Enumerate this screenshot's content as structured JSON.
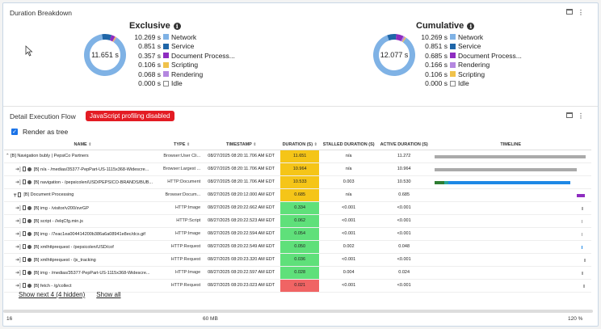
{
  "duration_panel": {
    "title": "Duration Breakdown",
    "exclusive": {
      "title": "Exclusive",
      "center_label": "11.651 s",
      "items": [
        {
          "value": "10.269 s",
          "label": "Network",
          "color": "#7fb2e5"
        },
        {
          "value": "0.851 s",
          "label": "Service",
          "color": "#1f66a8"
        },
        {
          "value": "0.357 s",
          "label": "Document Process...",
          "color": "#8e2cc0"
        },
        {
          "value": "0.106 s",
          "label": "Scripting",
          "color": "#f0c24b"
        },
        {
          "value": "0.068 s",
          "label": "Rendering",
          "color": "#b487e0"
        },
        {
          "value": "0.000 s",
          "label": "Idle",
          "color": "#ffffff"
        }
      ]
    },
    "cumulative": {
      "title": "Cumulative",
      "center_label": "12.077 s",
      "items": [
        {
          "value": "10.269 s",
          "label": "Network",
          "color": "#7fb2e5"
        },
        {
          "value": "0.851 s",
          "label": "Service",
          "color": "#1f66a8"
        },
        {
          "value": "0.685 s",
          "label": "Document Process...",
          "color": "#8e2cc0"
        },
        {
          "value": "0.166 s",
          "label": "Rendering",
          "color": "#b487e0"
        },
        {
          "value": "0.106 s",
          "label": "Scripting",
          "color": "#f0c24b"
        },
        {
          "value": "0.000 s",
          "label": "Idle",
          "color": "#ffffff"
        }
      ]
    }
  },
  "flow_panel": {
    "title": "Detail Execution Flow",
    "badge": "JavaScript profiling disabled",
    "render_as_tree": "Render as tree",
    "columns": [
      "NAME",
      "TYPE",
      "TIMESTAMP",
      "DURATION (S)",
      "STALLED DURATION (S)",
      "ACTIVE DURATION (S)",
      "TIMELINE"
    ],
    "rows": [
      {
        "name": "[B] Navigation bubly | PepsiCo Partners",
        "type": "Browser:User Cli...",
        "ts": "08/27/2025 08:20:11.706 AM EDT",
        "dur": "11.651",
        "stalled": "n/a",
        "active": "11.272",
        "dur_color": "#f5c518",
        "tl_color": "#aaaaaa",
        "tl_start": 0.0,
        "tl_end": 1.0
      },
      {
        "name": "[B] n/a - /medias/35377-PepPart-US-1115x368-Widescre...",
        "type": "Browser:Largest ...",
        "ts": "08/27/2025 08:20:11.706 AM EDT",
        "dur": "10.964",
        "stalled": "n/a",
        "active": "10.964",
        "dur_color": "#f5c518",
        "tl_color": "#aaaaaa",
        "tl_start": 0.0,
        "tl_end": 0.94
      },
      {
        "name": "[B] navigation - /pepsicolen/USD/PEPSICO-BRANDS/BUB...",
        "type": "HTTP:Document",
        "ts": "08/27/2025 08:20:11.706 AM EDT",
        "dur": "10.533",
        "stalled": "0.003",
        "active": "10.530",
        "dur_color": "#f5c518",
        "tl_color": "#1e88e5",
        "tl_start": 0.0,
        "tl_end": 0.9
      },
      {
        "name": "[B] Document Processing",
        "type": "Browser:Docum...",
        "ts": "08/27/2025 08:20:12.000 AM EDT",
        "dur": "0.685",
        "stalled": "n/a",
        "active": "0.685",
        "dur_color": "#f5c518",
        "tl_color": "#8e2cc0",
        "tl_start": 0.94,
        "tl_end": 0.995
      },
      {
        "name": "[B] img - /visitor/v200/svrGP",
        "type": "HTTP:Image",
        "ts": "08/27/2025 08:20:22.662 AM EDT",
        "dur": "0.334",
        "stalled": "<0.001",
        "active": "<0.001",
        "dur_color": "#5fe07a",
        "tl_color": "#aaaaaa",
        "tl_start": 0.975,
        "tl_end": 0.985
      },
      {
        "name": "[B] script - //elqCfg.min.js",
        "type": "HTTP:Script",
        "ts": "08/27/2025 08:20:22.523 AM EDT",
        "dur": "0.062",
        "stalled": "<0.001",
        "active": "<0.001",
        "dur_color": "#5fe07a",
        "tl_color": "#aaaaaa",
        "tl_start": 0.97,
        "tl_end": 0.975
      },
      {
        "name": "[B] img - /7eac1ea004414200b386a6a08941e8ec/dcs.gif",
        "type": "HTTP:Image",
        "ts": "08/27/2025 08:20:22.594 AM EDT",
        "dur": "0.054",
        "stalled": "<0.001",
        "active": "<0.001",
        "dur_color": "#5fe07a",
        "tl_color": "#aaaaaa",
        "tl_start": 0.972,
        "tl_end": 0.977
      },
      {
        "name": "[B] xmlhttprequest - /pepsicolen/USD/cof",
        "type": "HTTP:Request",
        "ts": "08/27/2025 08:20:22.549 AM EDT",
        "dur": "0.050",
        "stalled": "0.002",
        "active": "0.048",
        "dur_color": "#5fe07a",
        "tl_color": "#1e88e5",
        "tl_start": 0.97,
        "tl_end": 0.975
      },
      {
        "name": "[B] xmlhttprequest - /js_tracking",
        "type": "HTTP:Request",
        "ts": "08/27/2025 08:20:23.320 AM EDT",
        "dur": "0.036",
        "stalled": "<0.001",
        "active": "<0.001",
        "dur_color": "#5fe07a",
        "tl_color": "#aaaaaa",
        "tl_start": 0.99,
        "tl_end": 0.994
      },
      {
        "name": "[B] img - /medias/35377-PepPart-US-1115x368-Widescre...",
        "type": "HTTP:Image",
        "ts": "08/27/2025 08:20:22.597 AM EDT",
        "dur": "0.028",
        "stalled": "0.004",
        "active": "0.024",
        "dur_color": "#5fe07a",
        "tl_color": "#aaaaaa",
        "tl_start": 0.975,
        "tl_end": 0.978
      },
      {
        "name": "[B] fetch - /g/collect",
        "type": "HTTP:Request",
        "ts": "08/27/2025 08:20:23.023 AM EDT",
        "dur": "0.021",
        "stalled": "<0.001",
        "active": "<0.001",
        "dur_color": "#f06464",
        "tl_color": "#aaaaaa",
        "tl_start": 0.985,
        "tl_end": 0.988
      }
    ],
    "show_next": "Show next 4 (4 hidden)",
    "show_all": "Show all"
  },
  "footer": {
    "left": "16",
    "middle": "60 MB",
    "right": "120 %"
  }
}
